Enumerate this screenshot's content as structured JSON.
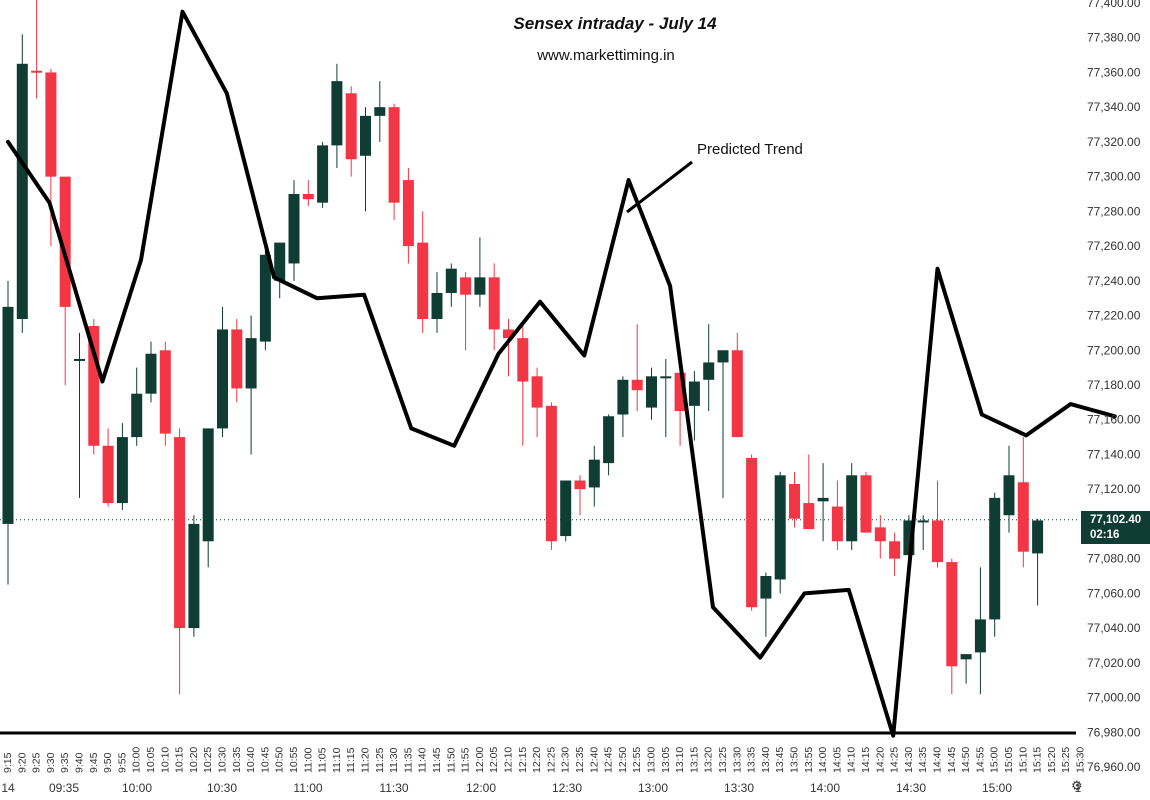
{
  "chart_data": {
    "type": "candlestick",
    "title": "Sensex intraday - July 14",
    "subtitle": "www.markettiming.in",
    "annotation": "Predicted Trend",
    "ylim": [
      76960,
      77400
    ],
    "y_ticks": [
      "77,400.00",
      "77,380.00",
      "77,360.00",
      "77,340.00",
      "77,320.00",
      "77,300.00",
      "77,280.00",
      "77,260.00",
      "77,240.00",
      "77,220.00",
      "77,200.00",
      "77,180.00",
      "77,160.00",
      "77,140.00",
      "77,120.00",
      "77,100.00",
      "77,080.00",
      "77,060.00",
      "77,040.00",
      "77,020.00",
      "77,000.00",
      "76,980.00",
      "76,960.00"
    ],
    "current_price": {
      "value": "77,102.40",
      "countdown": "02:16",
      "price": 77102.4
    },
    "x_tick_labels": [
      "9:15",
      "9:20",
      "9:25",
      "9:30",
      "9:35",
      "9:40",
      "9:45",
      "9:50",
      "9:55",
      "10:00",
      "10:05",
      "10:10",
      "10:15",
      "10:20",
      "10:25",
      "10:30",
      "10:35",
      "10:40",
      "10:45",
      "10:50",
      "10:55",
      "11:00",
      "11:05",
      "11:10",
      "11:15",
      "11:20",
      "11:25",
      "11:30",
      "11:35",
      "11:40",
      "11:45",
      "11:50",
      "11:55",
      "12:00",
      "12:05",
      "12:10",
      "12:15",
      "12:20",
      "12:25",
      "12:30",
      "12:35",
      "12:40",
      "12:45",
      "12:50",
      "12:55",
      "13:00",
      "13:05",
      "13:10",
      "13:15",
      "13:20",
      "13:25",
      "13:30",
      "13:35",
      "13:40",
      "13:45",
      "13:50",
      "13:55",
      "14:00",
      "14:05",
      "14:10",
      "14:15",
      "14:20",
      "14:25",
      "14:30",
      "14:35",
      "14:40",
      "14:45",
      "14:50",
      "14:55",
      "15:00",
      "15:05",
      "15:10",
      "15:15",
      "15:20",
      "15:25",
      "15:30"
    ],
    "x_axis_labels": [
      "14",
      "09:35",
      "10:00",
      "10:30",
      "11:00",
      "11:30",
      "12:00",
      "12:30",
      "13:00",
      "13:30",
      "14:00",
      "14:30",
      "15:00",
      "1"
    ],
    "candles": [
      {
        "o": 77100,
        "h": 77240,
        "l": 77065,
        "c": 77225
      },
      {
        "o": 77218,
        "h": 77382,
        "l": 77210,
        "c": 77365
      },
      {
        "o": 77361,
        "h": 77403,
        "l": 77345,
        "c": 77360
      },
      {
        "o": 77360,
        "h": 77362,
        "l": 77260,
        "c": 77300
      },
      {
        "o": 77300,
        "h": 77300,
        "l": 77180,
        "c": 77225
      },
      {
        "o": 77195,
        "h": 77210,
        "l": 77115,
        "c": 77195
      },
      {
        "o": 77214,
        "h": 77218,
        "l": 77140,
        "c": 77145
      },
      {
        "o": 77145,
        "h": 77155,
        "l": 77110,
        "c": 77112
      },
      {
        "o": 77112,
        "h": 77158,
        "l": 77108,
        "c": 77150
      },
      {
        "o": 77150,
        "h": 77190,
        "l": 77145,
        "c": 77175
      },
      {
        "o": 77175,
        "h": 77205,
        "l": 77170,
        "c": 77198
      },
      {
        "o": 77200,
        "h": 77205,
        "l": 77145,
        "c": 77152
      },
      {
        "o": 77150,
        "h": 77155,
        "l": 77002,
        "c": 77040
      },
      {
        "o": 77040,
        "h": 77105,
        "l": 77035,
        "c": 77100
      },
      {
        "o": 77090,
        "h": 77155,
        "l": 77075,
        "c": 77155
      },
      {
        "o": 77155,
        "h": 77225,
        "l": 77150,
        "c": 77212
      },
      {
        "o": 77212,
        "h": 77218,
        "l": 77170,
        "c": 77178
      },
      {
        "o": 77178,
        "h": 77220,
        "l": 77140,
        "c": 77207
      },
      {
        "o": 77205,
        "h": 77262,
        "l": 77200,
        "c": 77255
      },
      {
        "o": 77240,
        "h": 77262,
        "l": 77230,
        "c": 77262
      },
      {
        "o": 77250,
        "h": 77298,
        "l": 77240,
        "c": 77290
      },
      {
        "o": 77290,
        "h": 77298,
        "l": 77283,
        "c": 77287
      },
      {
        "o": 77285,
        "h": 77320,
        "l": 77282,
        "c": 77318
      },
      {
        "o": 77318,
        "h": 77365,
        "l": 77305,
        "c": 77355
      },
      {
        "o": 77348,
        "h": 77352,
        "l": 77300,
        "c": 77310
      },
      {
        "o": 77312,
        "h": 77340,
        "l": 77280,
        "c": 77335
      },
      {
        "o": 77335,
        "h": 77355,
        "l": 77320,
        "c": 77340
      },
      {
        "o": 77340,
        "h": 77342,
        "l": 77275,
        "c": 77285
      },
      {
        "o": 77298,
        "h": 77305,
        "l": 77250,
        "c": 77260
      },
      {
        "o": 77262,
        "h": 77280,
        "l": 77210,
        "c": 77218
      },
      {
        "o": 77218,
        "h": 77245,
        "l": 77210,
        "c": 77233
      },
      {
        "o": 77233,
        "h": 77250,
        "l": 77225,
        "c": 77247
      },
      {
        "o": 77242,
        "h": 77245,
        "l": 77200,
        "c": 77232
      },
      {
        "o": 77232,
        "h": 77265,
        "l": 77225,
        "c": 77242
      },
      {
        "o": 77242,
        "h": 77250,
        "l": 77200,
        "c": 77212
      },
      {
        "o": 77212,
        "h": 77218,
        "l": 77185,
        "c": 77207
      },
      {
        "o": 77207,
        "h": 77215,
        "l": 77145,
        "c": 77182
      },
      {
        "o": 77185,
        "h": 77190,
        "l": 77150,
        "c": 77167
      },
      {
        "o": 77168,
        "h": 77170,
        "l": 77085,
        "c": 77090
      },
      {
        "o": 77093,
        "h": 77125,
        "l": 77090,
        "c": 77125
      },
      {
        "o": 77125,
        "h": 77128,
        "l": 77105,
        "c": 77120
      },
      {
        "o": 77121,
        "h": 77145,
        "l": 77110,
        "c": 77137
      },
      {
        "o": 77135,
        "h": 77163,
        "l": 77128,
        "c": 77162
      },
      {
        "o": 77163,
        "h": 77185,
        "l": 77150,
        "c": 77183
      },
      {
        "o": 77183,
        "h": 77215,
        "l": 77165,
        "c": 77177
      },
      {
        "o": 77167,
        "h": 77190,
        "l": 77160,
        "c": 77185
      },
      {
        "o": 77185,
        "h": 77195,
        "l": 77150,
        "c": 77185
      },
      {
        "o": 77187,
        "h": 77190,
        "l": 77145,
        "c": 77165
      },
      {
        "o": 77168,
        "h": 77188,
        "l": 77148,
        "c": 77182
      },
      {
        "o": 77183,
        "h": 77215,
        "l": 77165,
        "c": 77193
      },
      {
        "o": 77193,
        "h": 77200,
        "l": 77115,
        "c": 77200
      },
      {
        "o": 77200,
        "h": 77210,
        "l": 77150,
        "c": 77150
      },
      {
        "o": 77138,
        "h": 77140,
        "l": 77050,
        "c": 77052
      },
      {
        "o": 77057,
        "h": 77072,
        "l": 77035,
        "c": 77070
      },
      {
        "o": 77068,
        "h": 77130,
        "l": 77060,
        "c": 77128
      },
      {
        "o": 77123,
        "h": 77130,
        "l": 77098,
        "c": 77103
      },
      {
        "o": 77112,
        "h": 77140,
        "l": 77100,
        "c": 77097
      },
      {
        "o": 77113,
        "h": 77135,
        "l": 77090,
        "c": 77115
      },
      {
        "o": 77110,
        "h": 77125,
        "l": 77085,
        "c": 77090
      },
      {
        "o": 77090,
        "h": 77135,
        "l": 77085,
        "c": 77128
      },
      {
        "o": 77128,
        "h": 77130,
        "l": 77095,
        "c": 77095
      },
      {
        "o": 77098,
        "h": 77105,
        "l": 77080,
        "c": 77090
      },
      {
        "o": 77090,
        "h": 77095,
        "l": 77070,
        "c": 77080
      },
      {
        "o": 77082,
        "h": 77105,
        "l": 77065,
        "c": 77102
      },
      {
        "o": 77102,
        "h": 77105,
        "l": 77085,
        "c": 77102
      },
      {
        "o": 77102,
        "h": 77125,
        "l": 77075,
        "c": 77078
      },
      {
        "o": 77078,
        "h": 77080,
        "l": 77002,
        "c": 77018
      },
      {
        "o": 77022,
        "h": 77025,
        "l": 77008,
        "c": 77025
      },
      {
        "o": 77026,
        "h": 77075,
        "l": 77002,
        "c": 77045
      },
      {
        "o": 77045,
        "h": 77118,
        "l": 77035,
        "c": 77115
      },
      {
        "o": 77105,
        "h": 77145,
        "l": 77095,
        "c": 77128
      },
      {
        "o": 77124,
        "h": 77150,
        "l": 77075,
        "c": 77084
      },
      {
        "o": 77083,
        "h": 77103,
        "l": 77053,
        "c": 77102
      }
    ],
    "predicted_trend": [
      {
        "x": 0,
        "y": 77320
      },
      {
        "x": 2.9,
        "y": 77285
      },
      {
        "x": 6.6,
        "y": 77182
      },
      {
        "x": 9.3,
        "y": 77252
      },
      {
        "x": 12.2,
        "y": 77395
      },
      {
        "x": 15.3,
        "y": 77348
      },
      {
        "x": 18.6,
        "y": 77242
      },
      {
        "x": 21.6,
        "y": 77230
      },
      {
        "x": 24.9,
        "y": 77232
      },
      {
        "x": 28.2,
        "y": 77155
      },
      {
        "x": 31.2,
        "y": 77145
      },
      {
        "x": 34.3,
        "y": 77198
      },
      {
        "x": 37.2,
        "y": 77228
      },
      {
        "x": 40.3,
        "y": 77197
      },
      {
        "x": 43.4,
        "y": 77298
      },
      {
        "x": 46.3,
        "y": 77237
      },
      {
        "x": 49.3,
        "y": 77052
      },
      {
        "x": 52.6,
        "y": 77023
      },
      {
        "x": 55.7,
        "y": 77060
      },
      {
        "x": 58.8,
        "y": 77062
      },
      {
        "x": 61.9,
        "y": 76978
      },
      {
        "x": 65.0,
        "y": 77247
      },
      {
        "x": 68.1,
        "y": 77163
      },
      {
        "x": 71.2,
        "y": 77151
      },
      {
        "x": 74.3,
        "y": 77169
      },
      {
        "x": 77.4,
        "y": 77162
      }
    ],
    "colors": {
      "up": "#0f3d33",
      "down": "#f23645",
      "trend": "#000000",
      "dotted": "#0f3d33"
    },
    "grid": false
  }
}
